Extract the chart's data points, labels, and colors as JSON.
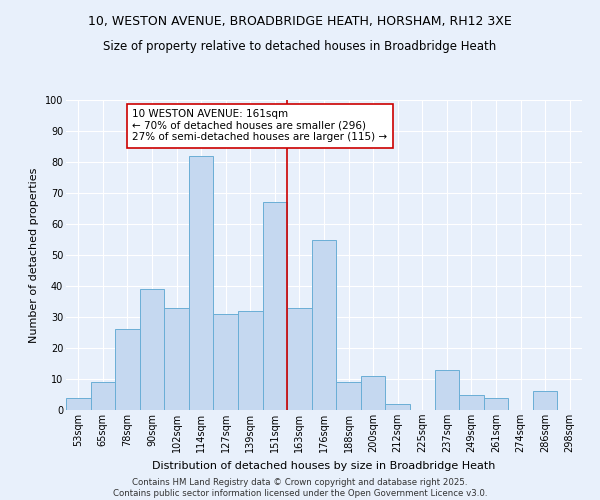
{
  "title1": "10, WESTON AVENUE, BROADBRIDGE HEATH, HORSHAM, RH12 3XE",
  "title2": "Size of property relative to detached houses in Broadbridge Heath",
  "xlabel": "Distribution of detached houses by size in Broadbridge Heath",
  "ylabel": "Number of detached properties",
  "categories": [
    "53sqm",
    "65sqm",
    "78sqm",
    "90sqm",
    "102sqm",
    "114sqm",
    "127sqm",
    "139sqm",
    "151sqm",
    "163sqm",
    "176sqm",
    "188sqm",
    "200sqm",
    "212sqm",
    "225sqm",
    "237sqm",
    "249sqm",
    "261sqm",
    "274sqm",
    "286sqm",
    "298sqm"
  ],
  "values": [
    4,
    9,
    26,
    39,
    33,
    82,
    31,
    32,
    67,
    33,
    55,
    9,
    11,
    2,
    0,
    13,
    5,
    4,
    0,
    6,
    0
  ],
  "bar_color": "#c5d8f0",
  "bar_edgecolor": "#6aaed6",
  "vline_index": 9,
  "vline_color": "#cc0000",
  "annotation_line1": "10 WESTON AVENUE: 161sqm",
  "annotation_line2": "← 70% of detached houses are smaller (296)",
  "annotation_line3": "27% of semi-detached houses are larger (115) →",
  "annotation_box_edgecolor": "#cc0000",
  "annotation_box_facecolor": "white",
  "ylim": [
    0,
    100
  ],
  "yticks": [
    0,
    10,
    20,
    30,
    40,
    50,
    60,
    70,
    80,
    90,
    100
  ],
  "background_color": "#e8f0fb",
  "grid_color": "white",
  "footer1": "Contains HM Land Registry data © Crown copyright and database right 2025.",
  "footer2": "Contains public sector information licensed under the Open Government Licence v3.0.",
  "title_fontsize": 9,
  "subtitle_fontsize": 8.5,
  "axis_label_fontsize": 8,
  "tick_fontsize": 7,
  "annotation_fontsize": 7.5
}
